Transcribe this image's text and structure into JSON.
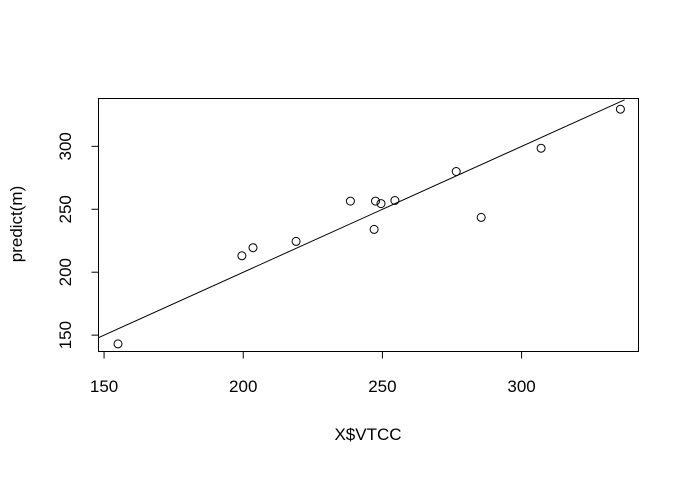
{
  "chart_data": {
    "type": "scatter",
    "title": "",
    "xlabel": "X$VTCC",
    "ylabel": "predict(m)",
    "xlim": [
      148,
      342
    ],
    "ylim": [
      137,
      338
    ],
    "grid": false,
    "x_ticks": [
      150,
      200,
      250,
      300
    ],
    "y_ticks": [
      150,
      200,
      250,
      300
    ],
    "series": [
      {
        "marker": "open-circle",
        "points": [
          {
            "x": 155,
            "y": 143
          },
          {
            "x": 199.5,
            "y": 213
          },
          {
            "x": 203.5,
            "y": 219.5
          },
          {
            "x": 219,
            "y": 224.5
          },
          {
            "x": 238.5,
            "y": 256.5
          },
          {
            "x": 247,
            "y": 234
          },
          {
            "x": 247.5,
            "y": 256.5
          },
          {
            "x": 249.5,
            "y": 254.5
          },
          {
            "x": 254.5,
            "y": 257
          },
          {
            "x": 276.5,
            "y": 280
          },
          {
            "x": 285.5,
            "y": 243.5
          },
          {
            "x": 307,
            "y": 298.5
          },
          {
            "x": 335.5,
            "y": 329.5
          }
        ]
      }
    ],
    "reference_line": {
      "from": {
        "x": 148,
        "y": 148
      },
      "to": {
        "x": 337,
        "y": 337
      }
    },
    "colors": {
      "axis": "#000000",
      "points": "#000000",
      "line": "#000000",
      "background": "#ffffff"
    }
  }
}
